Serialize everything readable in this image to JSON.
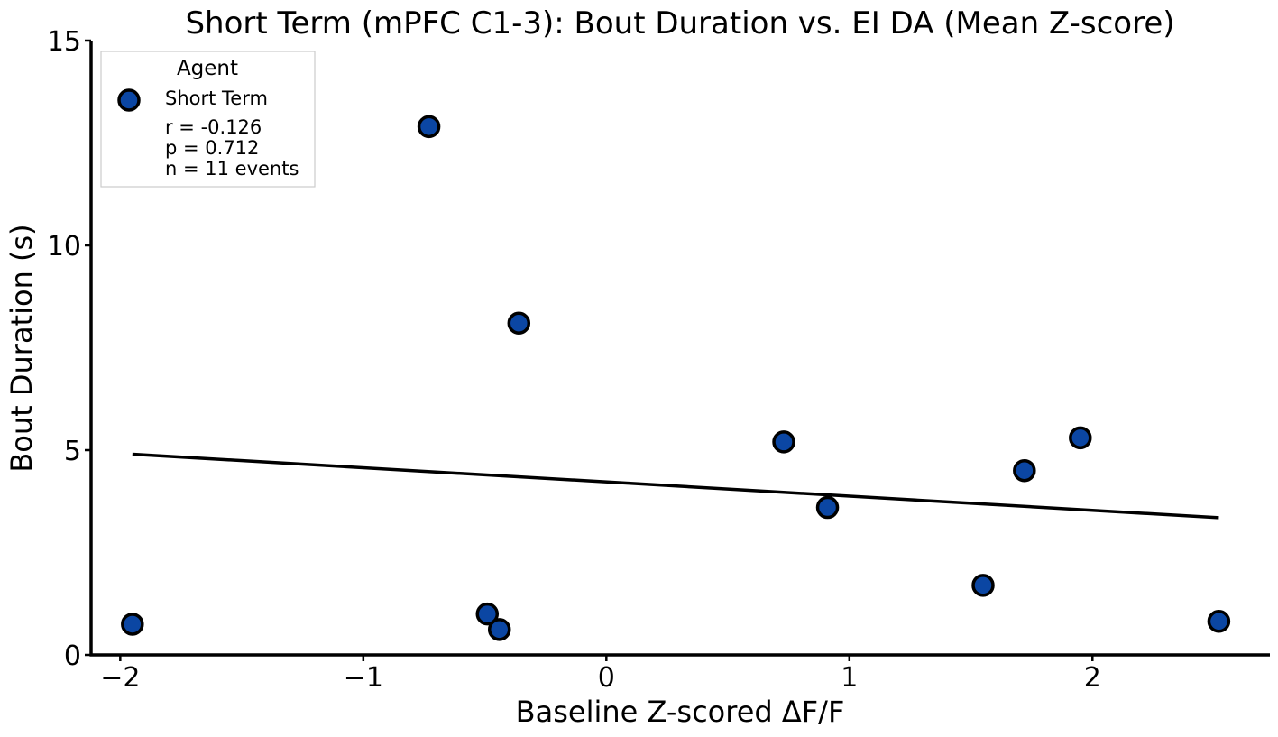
{
  "chart_data": {
    "type": "scatter",
    "title": "Short Term (mPFC C1-3): Bout Duration vs. EI DA (Mean Z-score)",
    "xlabel": "Baseline Z-scored ΔF/F",
    "ylabel": "Bout Duration (s)",
    "xlim": [
      -2.12,
      2.73
    ],
    "ylim": [
      0,
      15
    ],
    "xticks": [
      -2,
      -1,
      0,
      1,
      2
    ],
    "xtick_labels": [
      "−2",
      "−1",
      "0",
      "1",
      "2"
    ],
    "yticks": [
      0,
      5,
      10,
      15
    ],
    "ytick_labels": [
      "0",
      "5",
      "10",
      "15"
    ],
    "grid": false,
    "legend": {
      "title": "Agent",
      "placement": "top-left",
      "series_label": "Short Term",
      "stats": [
        "r = -0.126",
        "p = 0.712",
        "n = 11 events"
      ]
    },
    "series": [
      {
        "name": "Short Term",
        "color": "#0b46a3",
        "edge_color": "#000000",
        "points": [
          {
            "x": -1.95,
            "y": 0.75
          },
          {
            "x": -0.73,
            "y": 12.9
          },
          {
            "x": -0.49,
            "y": 1.0
          },
          {
            "x": -0.44,
            "y": 0.62
          },
          {
            "x": -0.36,
            "y": 8.1
          },
          {
            "x": 0.73,
            "y": 5.2
          },
          {
            "x": 0.91,
            "y": 3.6
          },
          {
            "x": 1.55,
            "y": 1.7
          },
          {
            "x": 1.72,
            "y": 4.5
          },
          {
            "x": 1.95,
            "y": 5.3
          },
          {
            "x": 2.52,
            "y": 0.82
          }
        ]
      }
    ],
    "fit_line": {
      "x": [
        -1.95,
        2.52
      ],
      "y": [
        4.9,
        3.35
      ],
      "color": "#000000"
    }
  }
}
